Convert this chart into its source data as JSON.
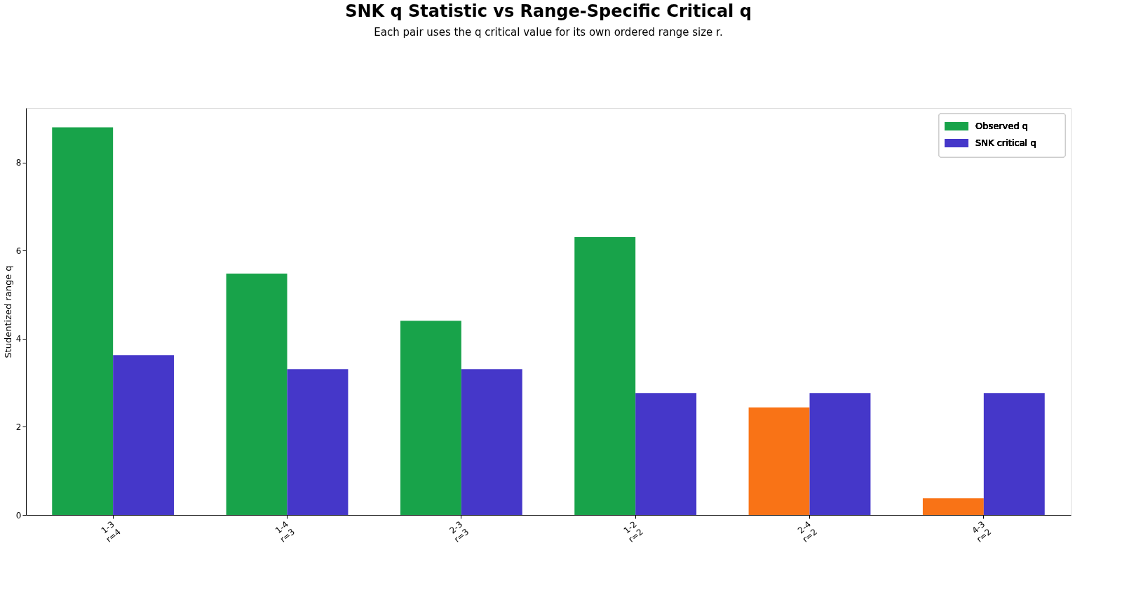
{
  "chart_data": {
    "type": "bar",
    "title": "SNK q Statistic vs Range-Specific Critical q",
    "subtitle": "Each pair uses the q critical value for its own ordered range size r.",
    "ylabel": "Studentized range q",
    "categories": [
      "1-3\nr=4",
      "1-4\nr=3",
      "2-3\nr=3",
      "1-2\nr=2",
      "2-4\nr=2",
      "4-3\nr=2"
    ],
    "series": [
      {
        "name": "Observed q",
        "color": "#18a34a",
        "colors": [
          "#18a34a",
          "#18a34a",
          "#18a34a",
          "#18a34a",
          "#f97316",
          "#f97316"
        ],
        "values": [
          8.8,
          5.48,
          4.41,
          6.31,
          2.44,
          0.38
        ]
      },
      {
        "name": "SNK critical q",
        "color": "#4537c9",
        "values": [
          3.63,
          3.31,
          3.31,
          2.77,
          2.77,
          2.77
        ]
      }
    ],
    "ylim": [
      0,
      9.24
    ],
    "yticks": [
      0,
      2,
      4,
      6,
      8
    ],
    "grid": false,
    "legend": "top right"
  }
}
